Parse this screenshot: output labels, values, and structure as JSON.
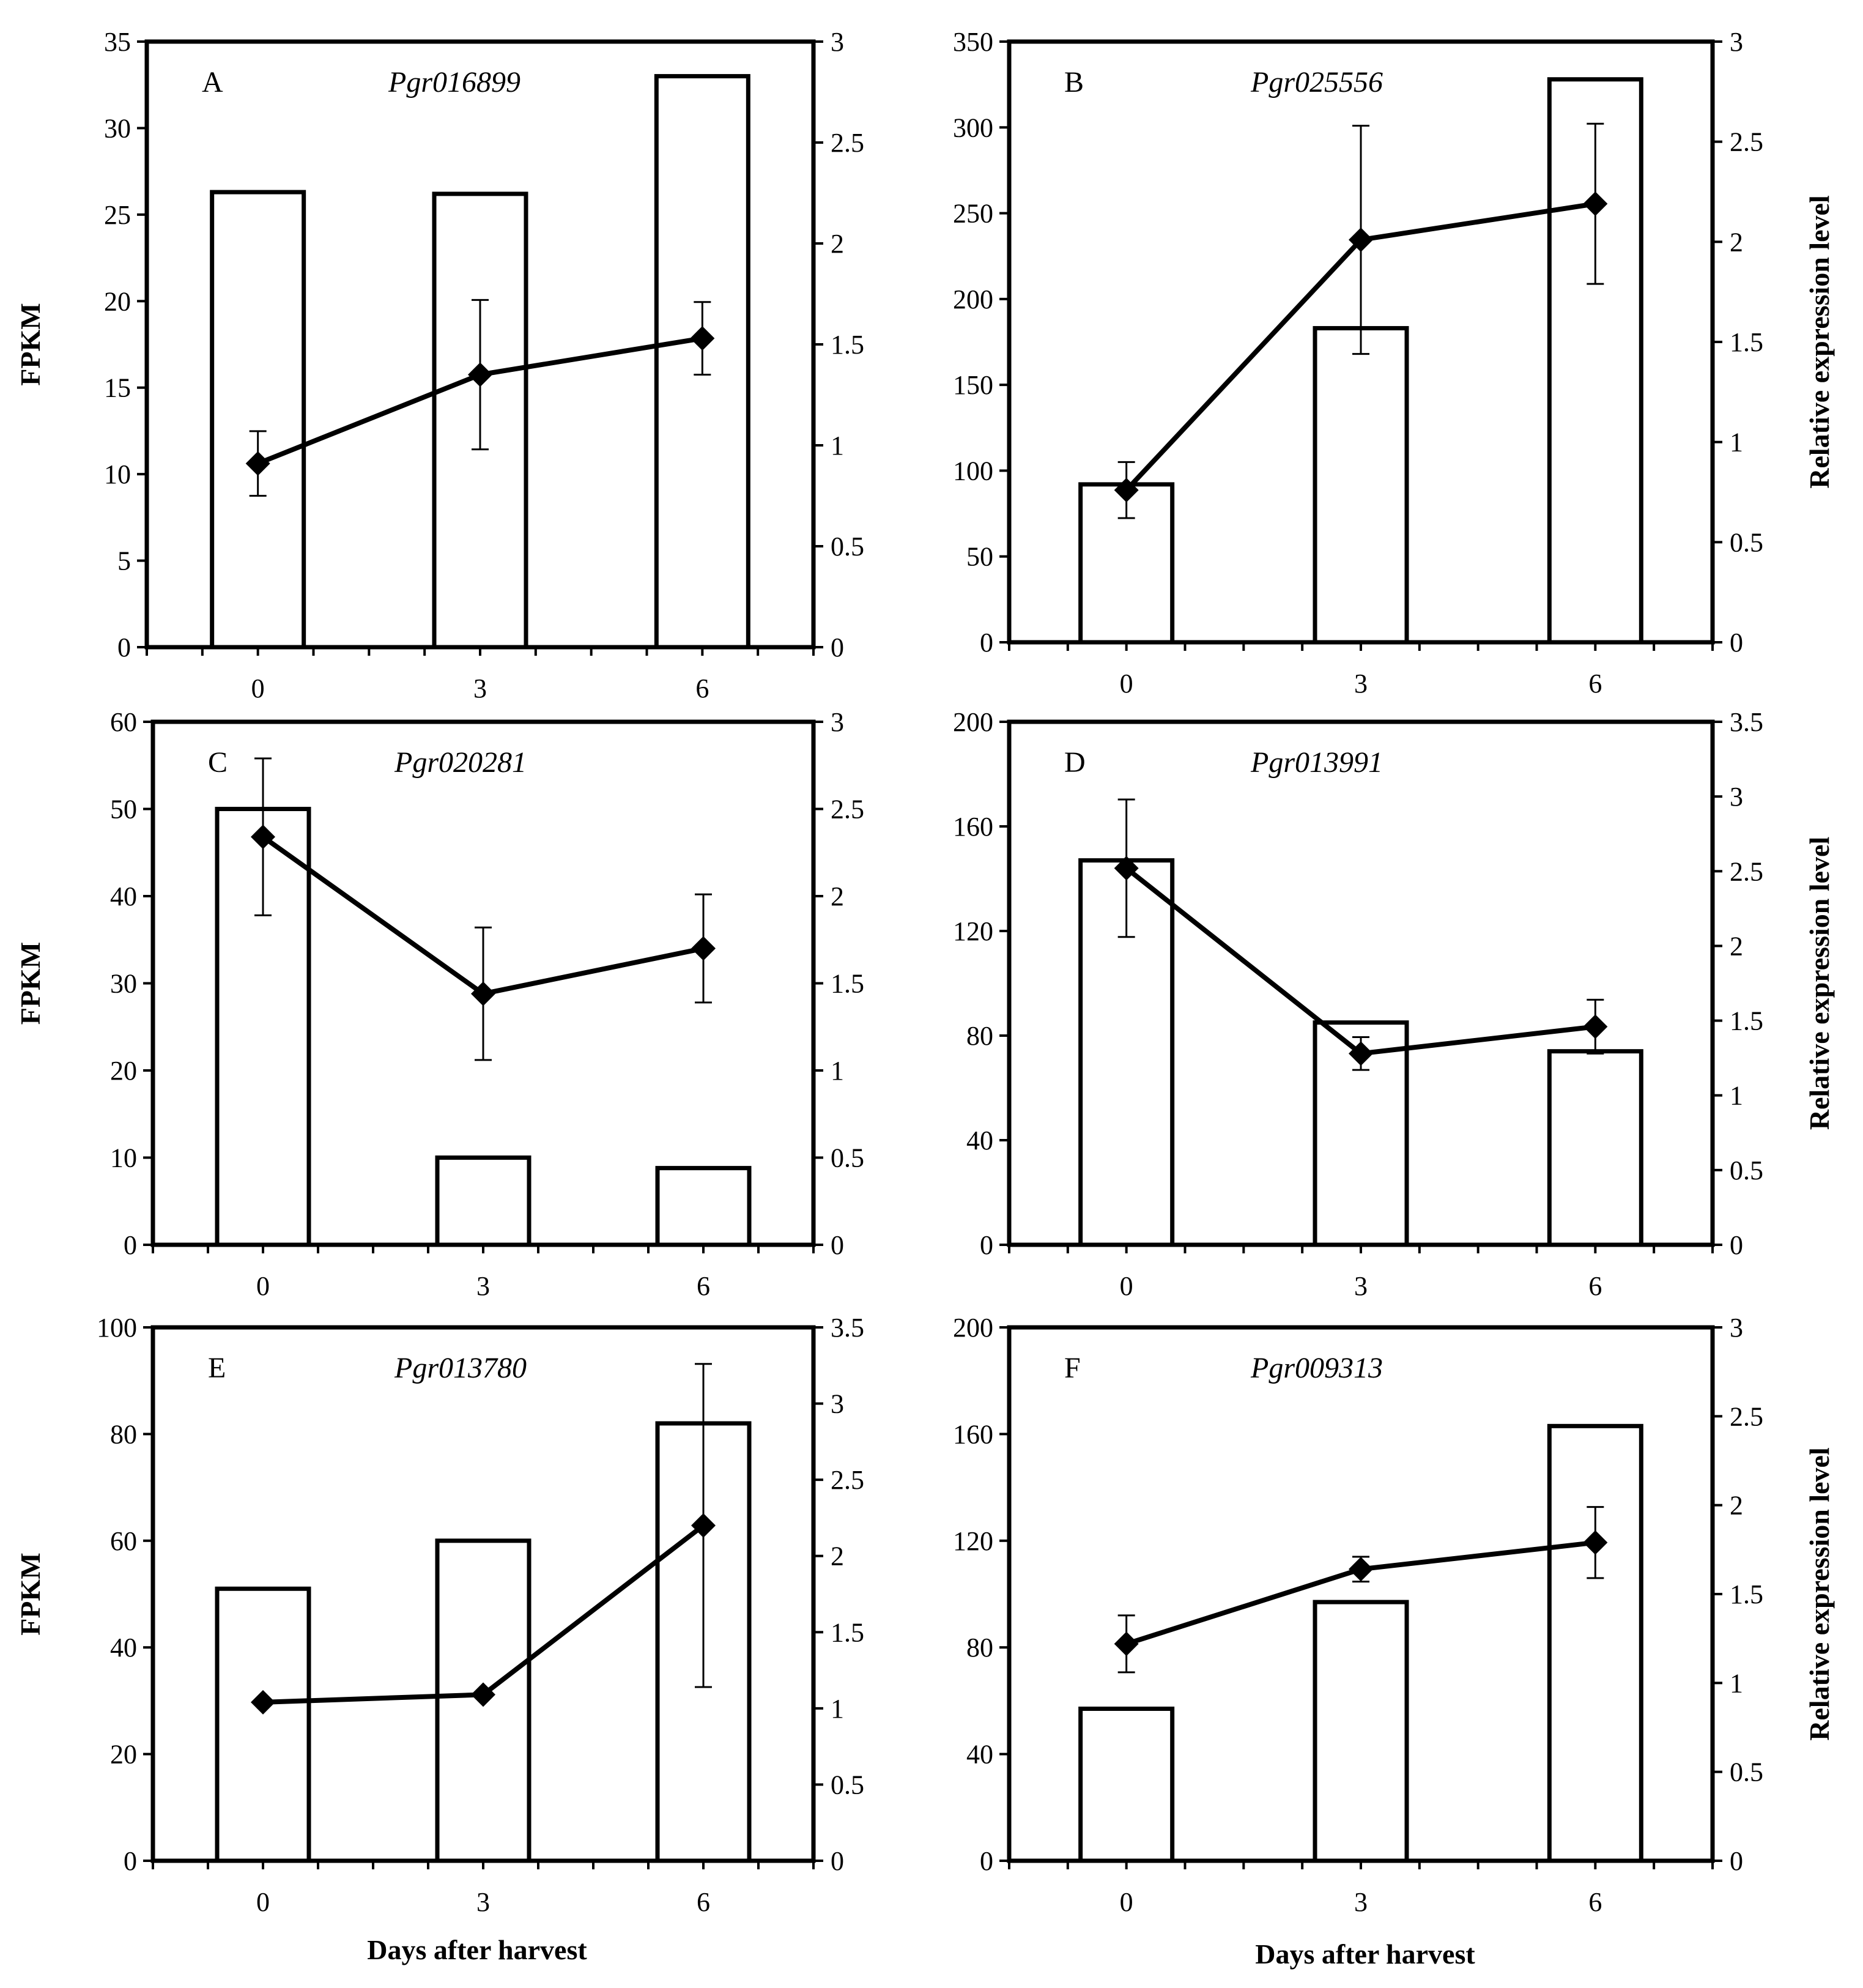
{
  "figure": {
    "xlabel": "Days after harvest",
    "left_axis_label": "FPKM",
    "right_axis_label": "Relative expression level"
  },
  "chart_data": [
    {
      "type": "bar",
      "panel": "A",
      "title": "Pgr016899",
      "categories": [
        "0",
        "3",
        "6"
      ],
      "xlabel": "",
      "ylabel": "FPKM",
      "y2label": "",
      "ylim": [
        0,
        35
      ],
      "yticks": [
        "0",
        "5",
        "10",
        "15",
        "20",
        "25",
        "30",
        "35"
      ],
      "y2lim": [
        0,
        3
      ],
      "y2ticks": [
        "0",
        "0.5",
        "1",
        "1.5",
        "2",
        "2.5",
        "3"
      ],
      "bars": {
        "name": "FPKM",
        "values": [
          26.3,
          26.2,
          33.0
        ]
      },
      "line": {
        "name": "Relative expression level",
        "values": [
          0.91,
          1.35,
          1.53
        ],
        "error": [
          0.16,
          0.37,
          0.18
        ]
      }
    },
    {
      "type": "bar",
      "panel": "B",
      "title": "Pgr025556",
      "categories": [
        "0",
        "3",
        "6"
      ],
      "xlabel": "",
      "ylabel": "",
      "y2label": "Relative expression level",
      "ylim": [
        0,
        350
      ],
      "yticks": [
        "0",
        "50",
        "100",
        "150",
        "200",
        "250",
        "300",
        "350"
      ],
      "y2lim": [
        0,
        3
      ],
      "y2ticks": [
        "0",
        "0.5",
        "1",
        "1.5",
        "2",
        "2.5",
        "3"
      ],
      "bars": {
        "name": "FPKM",
        "values": [
          92,
          183,
          328
        ]
      },
      "line": {
        "name": "Relative expression level",
        "values": [
          0.76,
          2.01,
          2.19
        ],
        "error": [
          0.14,
          0.57,
          0.4
        ]
      }
    },
    {
      "type": "bar",
      "panel": "C",
      "title": "Pgr020281",
      "categories": [
        "0",
        "3",
        "6"
      ],
      "xlabel": "",
      "ylabel": "FPKM",
      "y2label": "",
      "ylim": [
        0,
        60
      ],
      "yticks": [
        "0",
        "10",
        "20",
        "30",
        "40",
        "50",
        "60"
      ],
      "y2lim": [
        0,
        3
      ],
      "y2ticks": [
        "0",
        "0.5",
        "1",
        "1.5",
        "2",
        "2.5",
        "3"
      ],
      "bars": {
        "name": "FPKM",
        "values": [
          50,
          10,
          8.8
        ]
      },
      "line": {
        "name": "Relative expression level",
        "values": [
          2.34,
          1.44,
          1.7
        ],
        "error": [
          0.45,
          0.38,
          0.31
        ]
      }
    },
    {
      "type": "bar",
      "panel": "D",
      "title": "Pgr013991",
      "categories": [
        "0",
        "3",
        "6"
      ],
      "xlabel": "",
      "ylabel": "",
      "y2label": "Relative expression level",
      "ylim": [
        0,
        200
      ],
      "yticks": [
        "0",
        "40",
        "80",
        "120",
        "160",
        "200"
      ],
      "y2lim": [
        0,
        3.5
      ],
      "y2ticks": [
        "0",
        "0.5",
        "1",
        "1.5",
        "2",
        "2.5",
        "3",
        "3.5"
      ],
      "bars": {
        "name": "FPKM",
        "values": [
          147,
          85,
          74
        ]
      },
      "line": {
        "name": "Relative expression level",
        "values": [
          2.52,
          1.28,
          1.46
        ],
        "error": [
          0.46,
          0.11,
          0.18
        ]
      }
    },
    {
      "type": "bar",
      "panel": "E",
      "title": "Pgr013780",
      "categories": [
        "0",
        "3",
        "6"
      ],
      "xlabel": "Days after harvest",
      "ylabel": "FPKM",
      "y2label": "",
      "ylim": [
        0,
        100
      ],
      "yticks": [
        "0",
        "20",
        "40",
        "60",
        "80",
        "100"
      ],
      "y2lim": [
        0,
        3.5
      ],
      "y2ticks": [
        "0",
        "0.5",
        "1",
        "1.5",
        "2",
        "2.5",
        "3",
        "3.5"
      ],
      "bars": {
        "name": "FPKM",
        "values": [
          51,
          60,
          82
        ]
      },
      "line": {
        "name": "Relative expression level",
        "values": [
          1.04,
          1.09,
          2.2
        ],
        "error": [
          0,
          0,
          1.06
        ]
      }
    },
    {
      "type": "bar",
      "panel": "F",
      "title": "Pgr009313",
      "categories": [
        "0",
        "3",
        "6"
      ],
      "xlabel": "Days after harvest",
      "ylabel": "",
      "y2label": "Relative expression level",
      "ylim": [
        0,
        200
      ],
      "yticks": [
        "0",
        "40",
        "80",
        "120",
        "160",
        "200"
      ],
      "y2lim": [
        0,
        3
      ],
      "y2ticks": [
        "0",
        "0.5",
        "1",
        "1.5",
        "2",
        "2.5",
        "3"
      ],
      "bars": {
        "name": "FPKM",
        "values": [
          57,
          97,
          163
        ]
      },
      "line": {
        "name": "Relative expression level",
        "values": [
          1.22,
          1.64,
          1.79
        ],
        "error": [
          0.16,
          0.07,
          0.2
        ]
      }
    }
  ]
}
